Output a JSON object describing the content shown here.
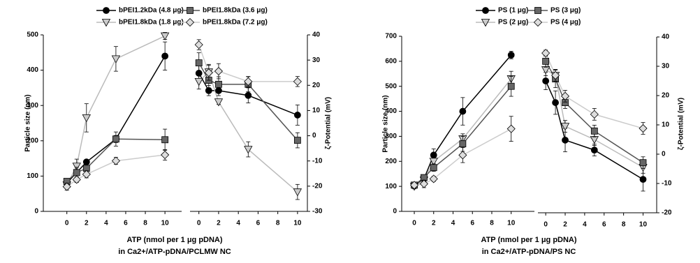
{
  "chart_data": [
    {
      "type": "line",
      "xlabel": [
        "ATP (nmol per 1 μg pDNA)",
        "in Ca2+/ATP-pDNA/PCLMW NC"
      ],
      "ylabel": "Particle size (nm)",
      "y2label": "ζ-Potential (mV)",
      "x": [
        0,
        1,
        2,
        5,
        10
      ],
      "xlim": [
        -2.4,
        11.7
      ],
      "xticks": [
        0,
        2,
        4,
        6,
        8,
        10
      ],
      "y2_xlim": [
        -0.9,
        11
      ],
      "y2_xticks": [
        0,
        2,
        4,
        6,
        8,
        10
      ],
      "ylim": [
        0,
        500
      ],
      "yticks": [
        0,
        100,
        200,
        300,
        400,
        500
      ],
      "y2lim": [
        -30,
        40
      ],
      "y2ticks": [
        -30,
        -20,
        -10,
        0,
        10,
        20,
        30,
        40
      ],
      "series": [
        {
          "name": "bPEI1.2kDa (4.8 μg)",
          "color": "#000000",
          "fill": "#000000",
          "marker": "circle",
          "values": [
            80,
            110,
            140,
            205,
            440
          ],
          "errors": [
            6,
            8,
            6,
            10,
            40
          ],
          "y2_values": [
            24.8,
            17.9,
            17.9,
            16,
            8.2
          ],
          "y2_errors": [
            3,
            2,
            2,
            3,
            4
          ]
        },
        {
          "name": "bPEI1.8kDa (1.8 μg)",
          "color": "#bbbbbb",
          "fill": "#cccccc",
          "marker": "triangle",
          "values": [
            75,
            128,
            265,
            432,
            497
          ],
          "errors": [
            8,
            20,
            40,
            35,
            10
          ],
          "y2_values": [
            21.5,
            25.3,
            13.4,
            -5.4,
            -22.3
          ],
          "y2_errors": [
            3,
            3,
            1,
            3,
            3
          ]
        },
        {
          "name": "bPEI1.8kDa (3.6 μg)",
          "color": "#555555",
          "fill": "#666666",
          "marker": "square",
          "values": [
            85,
            110,
            122,
            205,
            203
          ],
          "errors": [
            6,
            15,
            8,
            20,
            30
          ],
          "y2_values": [
            28.9,
            22,
            20.4,
            20.4,
            -1.8
          ],
          "y2_errors": [
            4,
            3,
            3,
            3,
            3
          ]
        },
        {
          "name": "bPEI1.8kDa (7.2 μg)",
          "color": "#cccccc",
          "fill": "#dddddd",
          "marker": "diamond",
          "values": [
            70,
            90,
            105,
            143,
            160
          ],
          "errors": [
            10,
            8,
            10,
            10,
            15
          ],
          "y2_values": [
            36.1,
            25,
            25.6,
            21.5,
            21.5
          ],
          "y2_errors": [
            2,
            3,
            3,
            2,
            2
          ]
        }
      ]
    },
    {
      "type": "line",
      "xlabel": [
        "ATP (nmol per 1 μg pDNA)",
        "in Ca2+/ATP-pDNA/PS NC"
      ],
      "ylabel": "Particle size (nm)",
      "y2label": "ζ-Potential (mV)",
      "x": [
        0,
        1,
        2,
        5,
        10
      ],
      "xlim": [
        -1.3,
        12.4
      ],
      "xticks": [
        0,
        2,
        4,
        6,
        8,
        10
      ],
      "y2_xlim": [
        -0.8,
        11.4
      ],
      "y2_xticks": [
        0,
        2,
        4,
        6,
        8,
        10
      ],
      "ylim": [
        0,
        700
      ],
      "yticks": [
        0,
        100,
        200,
        300,
        400,
        500,
        600,
        700
      ],
      "y2lim": [
        -20,
        40
      ],
      "y2ticks": [
        -20,
        -10,
        0,
        10,
        20,
        30,
        40
      ],
      "series": [
        {
          "name": "PS (1 μg)",
          "color": "#000000",
          "fill": "#000000",
          "marker": "circle",
          "values": [
            105,
            130,
            225,
            400,
            625
          ],
          "errors": [
            10,
            10,
            25,
            55,
            15
          ],
          "y2_values": [
            25,
            17.6,
            4.8,
            1.4,
            -8.6
          ],
          "y2_errors": [
            3,
            4,
            4,
            2,
            4
          ]
        },
        {
          "name": "PS (2 μg)",
          "color": "#bbbbbb",
          "fill": "#cccccc",
          "marker": "triangle",
          "values": [
            100,
            125,
            200,
            290,
            530
          ],
          "errors": [
            10,
            10,
            15,
            20,
            30
          ],
          "y2_values": [
            28.8,
            26.9,
            9.5,
            5,
            -4.5
          ],
          "y2_errors": [
            2,
            2,
            2,
            2,
            2
          ]
        },
        {
          "name": "PS (3 μg)",
          "color": "#555555",
          "fill": "#666666",
          "marker": "square",
          "values": [
            105,
            135,
            175,
            270,
            500
          ],
          "errors": [
            10,
            10,
            15,
            30,
            40
          ],
          "y2_values": [
            31.7,
            25.7,
            17.6,
            7.9,
            -2.9
          ],
          "y2_errors": [
            2,
            3,
            2,
            2,
            2
          ]
        },
        {
          "name": "PS (4 μg)",
          "color": "#cccccc",
          "fill": "#dddddd",
          "marker": "diamond",
          "values": [
            105,
            110,
            130,
            225,
            330
          ],
          "errors": [
            8,
            15,
            10,
            30,
            50
          ],
          "y2_values": [
            34.5,
            26.9,
            19.8,
            13.6,
            8.8
          ],
          "y2_errors": [
            1,
            2,
            2,
            2,
            2
          ]
        }
      ]
    }
  ]
}
